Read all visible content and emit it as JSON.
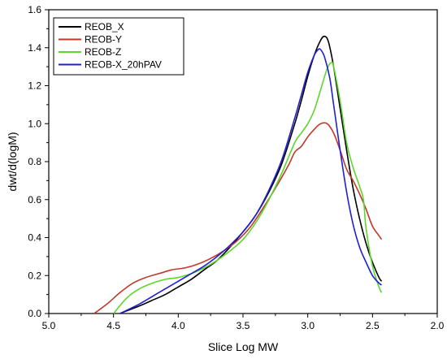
{
  "chart_data": {
    "type": "line",
    "title": "",
    "xlabel": "Slice Log MW",
    "ylabel": "dwt/d(logM)",
    "xlim": [
      5.0,
      2.0
    ],
    "ylim": [
      0.0,
      1.6
    ],
    "x_reversed": true,
    "grid": false,
    "legend_position": "top-left",
    "x_ticks": [
      "5.0",
      "4.5",
      "4.0",
      "3.5",
      "3.0",
      "2.5",
      "2.0"
    ],
    "y_ticks": [
      "0.0",
      "0.2",
      "0.4",
      "0.6",
      "0.8",
      "1.0",
      "1.2",
      "1.4",
      "1.6"
    ],
    "series": [
      {
        "name": "REOB_X",
        "color": "#000000",
        "x": [
          4.45,
          4.3,
          4.2,
          4.1,
          4.0,
          3.9,
          3.8,
          3.7,
          3.6,
          3.5,
          3.4,
          3.3,
          3.2,
          3.1,
          3.05,
          3.0,
          2.95,
          2.9,
          2.87,
          2.84,
          2.8,
          2.75,
          2.7,
          2.65,
          2.6,
          2.55,
          2.5,
          2.45,
          2.43
        ],
        "y": [
          0.0,
          0.04,
          0.07,
          0.1,
          0.14,
          0.18,
          0.23,
          0.28,
          0.35,
          0.43,
          0.52,
          0.64,
          0.79,
          1.0,
          1.12,
          1.25,
          1.36,
          1.44,
          1.46,
          1.43,
          1.3,
          1.08,
          0.86,
          0.66,
          0.5,
          0.37,
          0.27,
          0.19,
          0.17
        ]
      },
      {
        "name": "REOB-Y",
        "color": "#c0392b",
        "x": [
          4.65,
          4.55,
          4.45,
          4.35,
          4.25,
          4.15,
          4.05,
          3.95,
          3.85,
          3.75,
          3.65,
          3.55,
          3.45,
          3.35,
          3.25,
          3.15,
          3.1,
          3.05,
          3.0,
          2.95,
          2.9,
          2.85,
          2.8,
          2.75,
          2.7,
          2.65,
          2.6,
          2.55,
          2.5,
          2.45,
          2.43
        ],
        "y": [
          0.0,
          0.05,
          0.11,
          0.16,
          0.19,
          0.21,
          0.23,
          0.24,
          0.26,
          0.29,
          0.33,
          0.38,
          0.45,
          0.55,
          0.66,
          0.78,
          0.85,
          0.88,
          0.93,
          0.97,
          1.0,
          1.0,
          0.95,
          0.86,
          0.76,
          0.7,
          0.63,
          0.55,
          0.46,
          0.41,
          0.39
        ]
      },
      {
        "name": "REOB-Z",
        "color": "#5cd62c",
        "x": [
          4.5,
          4.4,
          4.3,
          4.2,
          4.1,
          4.0,
          3.9,
          3.8,
          3.7,
          3.6,
          3.5,
          3.4,
          3.3,
          3.2,
          3.1,
          3.05,
          3.0,
          2.95,
          2.9,
          2.85,
          2.82,
          2.8,
          2.75,
          2.7,
          2.65,
          2.6,
          2.57,
          2.55,
          2.5,
          2.45,
          2.43
        ],
        "y": [
          0.0,
          0.08,
          0.13,
          0.16,
          0.18,
          0.19,
          0.21,
          0.24,
          0.28,
          0.33,
          0.39,
          0.48,
          0.6,
          0.74,
          0.9,
          0.95,
          1.0,
          1.07,
          1.18,
          1.29,
          1.32,
          1.3,
          1.12,
          0.9,
          0.77,
          0.67,
          0.6,
          0.45,
          0.25,
          0.14,
          0.11
        ]
      },
      {
        "name": "REOB-X_20hPAV",
        "color": "#1f1fd6",
        "x": [
          4.45,
          4.3,
          4.2,
          4.1,
          4.0,
          3.9,
          3.8,
          3.7,
          3.6,
          3.5,
          3.4,
          3.3,
          3.2,
          3.1,
          3.05,
          3.0,
          2.95,
          2.92,
          2.9,
          2.87,
          2.83,
          2.8,
          2.75,
          2.7,
          2.65,
          2.6,
          2.55,
          2.5,
          2.45,
          2.43
        ],
        "y": [
          0.0,
          0.05,
          0.09,
          0.13,
          0.17,
          0.21,
          0.25,
          0.3,
          0.36,
          0.43,
          0.52,
          0.65,
          0.81,
          1.03,
          1.15,
          1.27,
          1.36,
          1.39,
          1.39,
          1.35,
          1.24,
          1.1,
          0.86,
          0.64,
          0.47,
          0.35,
          0.27,
          0.2,
          0.16,
          0.15
        ]
      }
    ]
  }
}
